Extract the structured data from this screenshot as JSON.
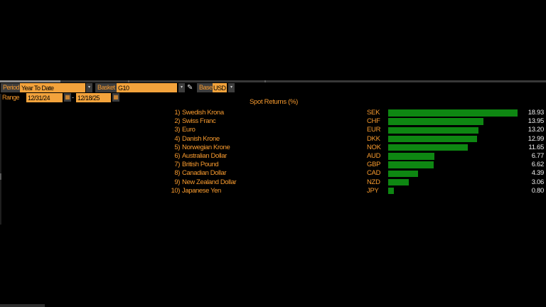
{
  "colors": {
    "background": "#000000",
    "amber_field": "#F3A33C",
    "orange_text": "#F79A2E",
    "button_gray": "#3D3D3D",
    "bar_green": "#0E8712",
    "value_text": "#EDEDED"
  },
  "toolbar": {
    "period": {
      "label": "Period",
      "value": "Year To Date"
    },
    "basket": {
      "label": "Basket",
      "value": "G10"
    },
    "base": {
      "label": "Base",
      "value": "USD"
    },
    "range": {
      "label": "Range",
      "start": "12/31/24",
      "separator": "-",
      "end": "12/18/25"
    },
    "icons": {
      "dropdown": "▾",
      "calendar": "▦",
      "pencil": "✎"
    }
  },
  "chart_data": {
    "type": "bar",
    "orientation": "horizontal",
    "title": "Spot Returns (%)",
    "ranks": [
      "1)",
      "2)",
      "3)",
      "4)",
      "5)",
      "6)",
      "7)",
      "8)",
      "9)",
      "10)"
    ],
    "categories": [
      "Swedish Krona",
      "Swiss Franc",
      "Euro",
      "Danish Krone",
      "Norwegian Krone",
      "Australian Dollar",
      "British Pound",
      "Canadian Dollar",
      "New Zealand Dollar",
      "Japanese Yen"
    ],
    "tickers": [
      "SEK",
      "CHF",
      "EUR",
      "DKK",
      "NOK",
      "AUD",
      "GBP",
      "CAD",
      "NZD",
      "JPY"
    ],
    "values": [
      18.93,
      13.95,
      13.2,
      12.99,
      11.65,
      6.77,
      6.62,
      4.39,
      3.06,
      0.8
    ],
    "value_labels": [
      "18.93",
      "13.95",
      "13.20",
      "12.99",
      "11.65",
      "6.77",
      "6.62",
      "4.39",
      "3.06",
      "0.80"
    ],
    "xlim": [
      0,
      18.93
    ],
    "bar_color": "#0E8712",
    "grid": false,
    "legend": "none"
  }
}
